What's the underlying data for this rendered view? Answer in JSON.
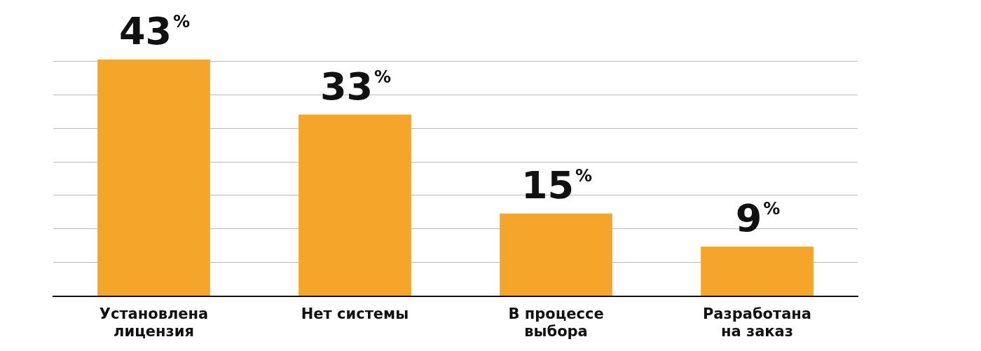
{
  "chart_data": {
    "type": "bar",
    "categories": [
      "Установлена лицензия",
      "Нет системы",
      "В процессе выбора",
      "Разработана на заказ"
    ],
    "values": [
      43,
      33,
      15,
      9
    ],
    "value_labels": [
      "43%",
      "33%",
      "15%",
      "9%"
    ],
    "color": "#f5a52a",
    "yticks": [
      {
        "value": 0,
        "label": null
      },
      {
        "value": 6.1,
        "label": null
      },
      {
        "value": 12.2,
        "label": null
      },
      {
        "value": 18.3,
        "label": null
      },
      {
        "value": 24.4,
        "label": null
      },
      {
        "value": 30.5,
        "label": null
      },
      {
        "value": 36.6,
        "label": null
      },
      {
        "value": 42.7,
        "label": null
      }
    ],
    "grid": "y",
    "tick_labels": "x",
    "legend": false
  }
}
